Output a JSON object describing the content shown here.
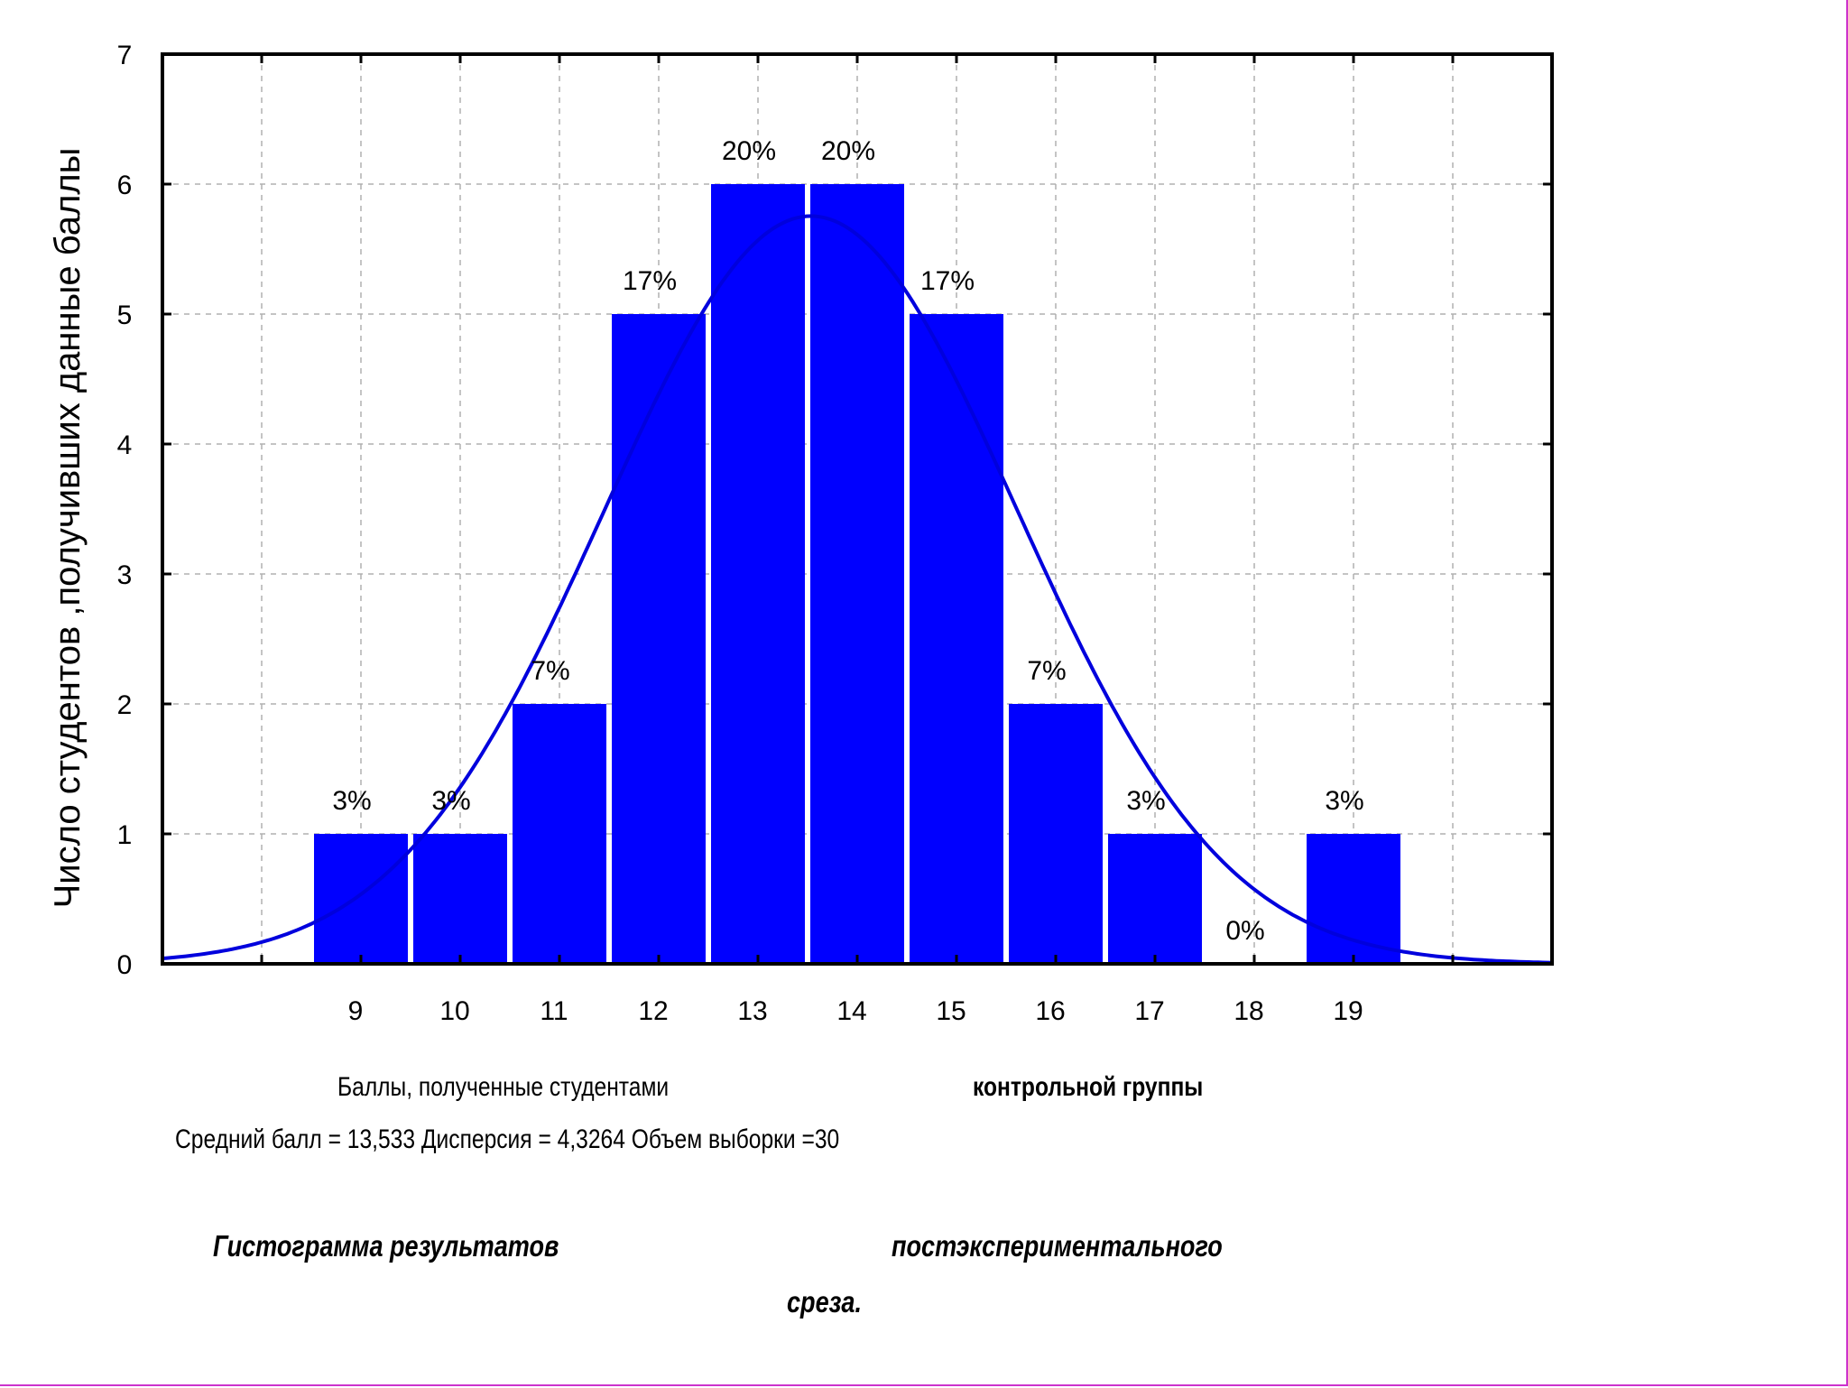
{
  "colors": {
    "bar": "#0000ff",
    "curve": "#0000dd",
    "frame": "#000000",
    "grid": "#b0b0b0",
    "page_border": "#cc33cc"
  },
  "chart_data": {
    "type": "bar",
    "categories": [
      "9",
      "10",
      "11",
      "12",
      "13",
      "14",
      "15",
      "16",
      "17",
      "18",
      "19"
    ],
    "values": [
      1,
      1,
      2,
      5,
      6,
      6,
      5,
      2,
      1,
      0,
      1
    ],
    "bar_labels": [
      "3%",
      "3%",
      "7%",
      "17%",
      "20%",
      "20%",
      "17%",
      "7%",
      "3%",
      "0%",
      "3%"
    ],
    "ylabel": "Число студентов ,получивших данные баллы",
    "xlabel": "Баллы, полученные студентами",
    "yticks": [
      "0",
      "1",
      "2",
      "3",
      "4",
      "5",
      "6",
      "7"
    ],
    "ylim": [
      0,
      7
    ],
    "xlim": [
      7,
      21
    ],
    "grid": true,
    "overlay": {
      "type": "normal-curve",
      "mean": 13.533,
      "variance": 4.3264,
      "n": 30
    }
  },
  "captions": {
    "xlabel_suffix": "контрольной группы",
    "stats": "Средний балл = 13,533    Дисперсия  = 4,3264     Объем выборки =30",
    "figure_title_left": "Гистограмма результатов",
    "figure_title_right": "постэкспериментального",
    "figure_title_end": "среза."
  }
}
